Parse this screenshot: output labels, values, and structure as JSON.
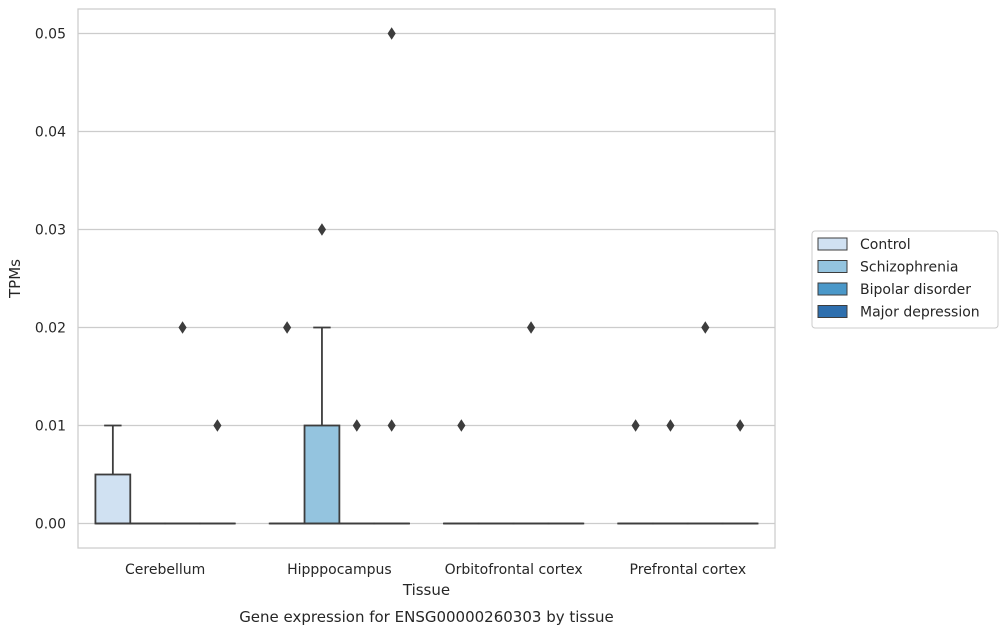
{
  "chart_data": {
    "type": "box",
    "xlabel": "Tissue",
    "ylabel": "TPMs",
    "caption": "Gene expression for ENSG00000260303 by tissue",
    "ylim": [
      -0.0025,
      0.0525
    ],
    "yticks": [
      "0.00",
      "0.01",
      "0.02",
      "0.03",
      "0.04",
      "0.05"
    ],
    "ytick_values": [
      0,
      0.01,
      0.02,
      0.03,
      0.04,
      0.05
    ],
    "grid": true,
    "legend_position": "right",
    "categories": [
      "Cerebellum",
      "Hipppocampus",
      "Orbitofrontal cortex",
      "Prefrontal cortex"
    ],
    "series": [
      {
        "name": "Control",
        "color": "#d0e1f2",
        "boxes": [
          {
            "q1": 0,
            "median": 0,
            "q3": 0.005,
            "whisker_low": 0,
            "whisker_high": 0.01,
            "outliers": []
          },
          {
            "q1": 0,
            "median": 0,
            "q3": 0,
            "whisker_low": 0,
            "whisker_high": 0,
            "outliers": [
              0.02
            ]
          },
          {
            "q1": 0,
            "median": 0,
            "q3": 0,
            "whisker_low": 0,
            "whisker_high": 0,
            "outliers": [
              0.01
            ]
          },
          {
            "q1": 0,
            "median": 0,
            "q3": 0,
            "whisker_low": 0,
            "whisker_high": 0,
            "outliers": [
              0.01
            ]
          }
        ]
      },
      {
        "name": "Schizophrenia",
        "color": "#94c4df",
        "boxes": [
          {
            "q1": 0,
            "median": 0,
            "q3": 0,
            "whisker_low": 0,
            "whisker_high": 0,
            "outliers": []
          },
          {
            "q1": 0,
            "median": 0,
            "q3": 0.01,
            "whisker_low": 0,
            "whisker_high": 0.02,
            "outliers": [
              0.03
            ]
          },
          {
            "q1": 0,
            "median": 0,
            "q3": 0,
            "whisker_low": 0,
            "whisker_high": 0,
            "outliers": []
          },
          {
            "q1": 0,
            "median": 0,
            "q3": 0,
            "whisker_low": 0,
            "whisker_high": 0,
            "outliers": [
              0.01
            ]
          }
        ]
      },
      {
        "name": "Bipolar disorder",
        "color": "#4a98c9",
        "boxes": [
          {
            "q1": 0,
            "median": 0,
            "q3": 0,
            "whisker_low": 0,
            "whisker_high": 0,
            "outliers": [
              0.02
            ]
          },
          {
            "q1": 0,
            "median": 0,
            "q3": 0,
            "whisker_low": 0,
            "whisker_high": 0,
            "outliers": [
              0.01
            ]
          },
          {
            "q1": 0,
            "median": 0,
            "q3": 0,
            "whisker_low": 0,
            "whisker_high": 0,
            "outliers": [
              0.02
            ]
          },
          {
            "q1": 0,
            "median": 0,
            "q3": 0,
            "whisker_low": 0,
            "whisker_high": 0,
            "outliers": [
              0.02
            ]
          }
        ]
      },
      {
        "name": "Major depression",
        "color": "#2e6fae",
        "boxes": [
          {
            "q1": 0,
            "median": 0,
            "q3": 0,
            "whisker_low": 0,
            "whisker_high": 0,
            "outliers": [
              0.01
            ]
          },
          {
            "q1": 0,
            "median": 0,
            "q3": 0,
            "whisker_low": 0,
            "whisker_high": 0,
            "outliers": [
              0.01,
              0.05
            ]
          },
          {
            "q1": 0,
            "median": 0,
            "q3": 0,
            "whisker_low": 0,
            "whisker_high": 0,
            "outliers": []
          },
          {
            "q1": 0,
            "median": 0,
            "q3": 0,
            "whisker_low": 0,
            "whisker_high": 0,
            "outliers": [
              0.01
            ]
          }
        ]
      }
    ]
  }
}
